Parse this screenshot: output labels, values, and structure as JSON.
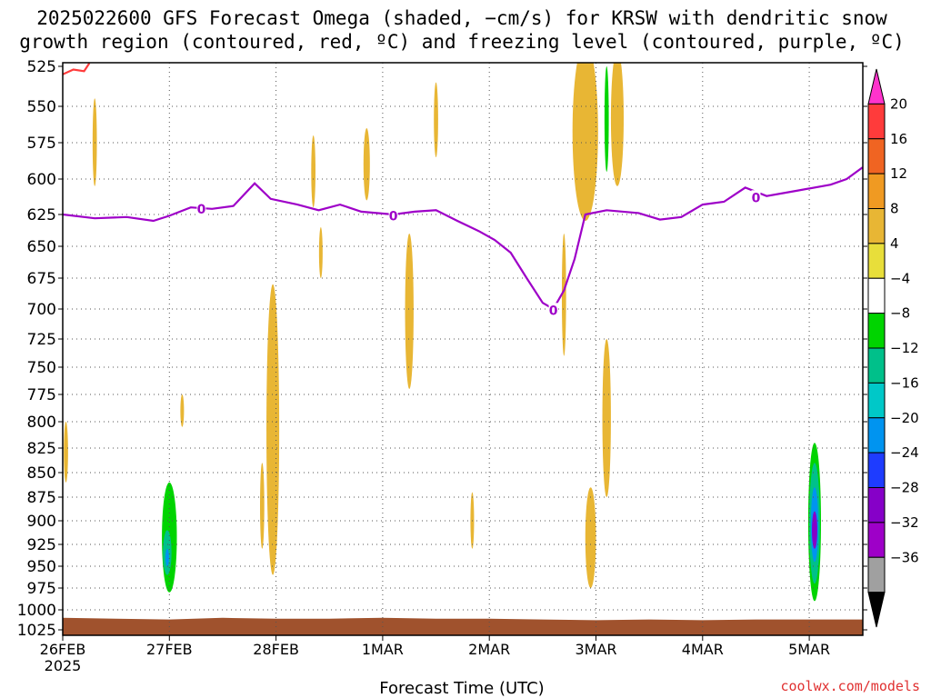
{
  "title_lines": [
    "2025022600 GFS Forecast Omega (shaded, −cm/s) for KRSW with dendritic snow",
    "growth region (contoured, red, ºC) and freezing level (contoured, purple, ºC)"
  ],
  "credit": "coolwx.com/models",
  "chart_data": {
    "type": "heatmap",
    "title": "2025022600 GFS Forecast Omega (shaded, −cm/s) for KRSW with dendritic snow growth region (contoured, red, ºC) and freezing level (contoured, purple, ºC)",
    "xlabel": "Forecast Time (UTC)",
    "ylabel": "",
    "xlim": [
      0,
      7.5
    ],
    "ylim": [
      1025,
      525
    ],
    "y_ticks": [
      525,
      550,
      575,
      600,
      625,
      650,
      675,
      700,
      725,
      750,
      775,
      800,
      825,
      850,
      875,
      900,
      925,
      950,
      975,
      1000,
      1025
    ],
    "x_ticks": [
      {
        "x": 0,
        "label": "26FEB",
        "sublabel": "2025"
      },
      {
        "x": 1,
        "label": "27FEB"
      },
      {
        "x": 2,
        "label": "28FEB"
      },
      {
        "x": 3,
        "label": "1MAR"
      },
      {
        "x": 4,
        "label": "2MAR"
      },
      {
        "x": 5,
        "label": "3MAR"
      },
      {
        "x": 6,
        "label": "4MAR"
      },
      {
        "x": 7,
        "label": "5MAR"
      }
    ],
    "grid": true,
    "colorbar": {
      "labels": [
        "20",
        "16",
        "12",
        "8",
        "4",
        "−4",
        "−8",
        "−12",
        "−16",
        "−20",
        "−24",
        "−28",
        "−32",
        "−36"
      ],
      "colors": [
        "#ff33cc",
        "#ff3b3b",
        "#f06422",
        "#f09a22",
        "#e8b634",
        "#e8de3a",
        "#ffffff",
        "#00d400",
        "#00c08a",
        "#00c8c8",
        "#0094f0",
        "#1e3cff",
        "#8600c8",
        "#9e00c8",
        "#a0a0a0",
        "#000000"
      ]
    },
    "freezing_level": {
      "color": "#9e00c8",
      "label": "0",
      "points": [
        [
          0,
          625
        ],
        [
          0.3,
          628
        ],
        [
          0.6,
          627
        ],
        [
          0.85,
          630
        ],
        [
          1.0,
          626
        ],
        [
          1.2,
          620
        ],
        [
          1.4,
          621
        ],
        [
          1.6,
          619
        ],
        [
          1.8,
          603
        ],
        [
          1.95,
          614
        ],
        [
          2.2,
          618
        ],
        [
          2.4,
          622
        ],
        [
          2.6,
          618
        ],
        [
          2.8,
          623
        ],
        [
          3.1,
          625
        ],
        [
          3.3,
          623
        ],
        [
          3.5,
          622
        ],
        [
          3.7,
          630
        ],
        [
          3.9,
          638
        ],
        [
          4.05,
          645
        ],
        [
          4.2,
          655
        ],
        [
          4.35,
          675
        ],
        [
          4.5,
          695
        ],
        [
          4.6,
          700
        ],
        [
          4.7,
          685
        ],
        [
          4.8,
          660
        ],
        [
          4.9,
          625
        ],
        [
          5.1,
          622
        ],
        [
          5.4,
          624
        ],
        [
          5.6,
          629
        ],
        [
          5.8,
          627
        ],
        [
          6.0,
          618
        ],
        [
          6.2,
          616
        ],
        [
          6.4,
          606
        ],
        [
          6.6,
          612
        ],
        [
          6.9,
          608
        ],
        [
          7.2,
          604
        ],
        [
          7.35,
          600
        ],
        [
          7.5,
          592
        ]
      ],
      "label_at": [
        [
          1.3,
          621
        ],
        [
          3.1,
          626
        ],
        [
          4.6,
          701
        ],
        [
          6.5,
          613
        ]
      ]
    },
    "dgz_contour": {
      "color": "#ff3b3b",
      "points": [
        [
          0.0,
          530
        ],
        [
          0.1,
          527
        ],
        [
          0.2,
          528
        ],
        [
          0.25,
          523
        ]
      ]
    },
    "terrain": {
      "color": "#a0522d",
      "points": [
        [
          0,
          1010
        ],
        [
          0.5,
          1011
        ],
        [
          1.0,
          1012
        ],
        [
          1.5,
          1010
        ],
        [
          2.0,
          1011
        ],
        [
          2.5,
          1011
        ],
        [
          3.0,
          1010
        ],
        [
          3.5,
          1011
        ],
        [
          4.0,
          1011
        ],
        [
          4.5,
          1012
        ],
        [
          5.0,
          1013
        ],
        [
          5.5,
          1012
        ],
        [
          6.0,
          1013
        ],
        [
          6.5,
          1012
        ],
        [
          7.0,
          1012
        ],
        [
          7.5,
          1012
        ]
      ]
    },
    "omega_regions": [
      {
        "value": -6,
        "cx": 1.0,
        "cy": 915,
        "rx": 0.12,
        "ry": 90
      },
      {
        "value": -10,
        "cx": 1.0,
        "cy": 920,
        "rx": 0.07,
        "ry": 60
      },
      {
        "value": -14,
        "cx": 0.98,
        "cy": 935,
        "rx": 0.04,
        "ry": 25
      },
      {
        "value": -22,
        "cx": 0.98,
        "cy": 940,
        "rx": 0.01,
        "ry": 10
      },
      {
        "value": -6,
        "cx": 7.05,
        "cy": 905,
        "rx": 0.08,
        "ry": 105
      },
      {
        "value": -10,
        "cx": 7.05,
        "cy": 905,
        "rx": 0.06,
        "ry": 85
      },
      {
        "value": -14,
        "cx": 7.05,
        "cy": 905,
        "rx": 0.05,
        "ry": 65
      },
      {
        "value": -22,
        "cx": 7.05,
        "cy": 905,
        "rx": 0.035,
        "ry": 40
      },
      {
        "value": -30,
        "cx": 7.05,
        "cy": 910,
        "rx": 0.025,
        "ry": 20
      },
      {
        "value": -6,
        "cx": 6.9,
        "cy": 920,
        "rx": 0.08,
        "ry": 55
      },
      {
        "value": -6,
        "cx": 6.1,
        "cy": 920,
        "rx": 0.06,
        "ry": 50
      },
      {
        "value": -6,
        "cx": 2.97,
        "cy": 945,
        "rx": 0.05,
        "ry": 50
      },
      {
        "value": -6,
        "cx": 4.35,
        "cy": 665,
        "rx": 0.06,
        "ry": 115
      },
      {
        "value": -6,
        "cx": 4.18,
        "cy": 620,
        "rx": 0.06,
        "ry": 75
      },
      {
        "value": -6,
        "cx": 4.14,
        "cy": 765,
        "rx": 0.03,
        "ry": 95
      },
      {
        "value": -6,
        "cx": 3.65,
        "cy": 610,
        "rx": 0.06,
        "ry": 80
      },
      {
        "value": -6,
        "cx": 3.78,
        "cy": 590,
        "rx": 0.04,
        "ry": 60
      },
      {
        "value": -6,
        "cx": 3.9,
        "cy": 610,
        "rx": 0.03,
        "ry": 40
      },
      {
        "value": -6,
        "cx": 3.55,
        "cy": 660,
        "rx": 0.02,
        "ry": 45
      },
      {
        "value": -6,
        "cx": 1.85,
        "cy": 560,
        "rx": 0.03,
        "ry": 35
      },
      {
        "value": -6,
        "cx": 5.1,
        "cy": 590,
        "rx": 0.03,
        "ry": 55
      },
      {
        "value": -10,
        "cx": 5.1,
        "cy": 560,
        "rx": 0.02,
        "ry": 35
      },
      {
        "value": -6,
        "cx": 5.95,
        "cy": 655,
        "rx": 0.03,
        "ry": 28
      },
      {
        "value": -6,
        "cx": 6.35,
        "cy": 650,
        "rx": 0.03,
        "ry": 25
      },
      {
        "value": -6,
        "cx": 6.3,
        "cy": 538,
        "rx": 0.03,
        "ry": 18
      },
      {
        "value": -6,
        "cx": 0.2,
        "cy": 630,
        "rx": 0.008,
        "ry": 15
      },
      {
        "value": 6,
        "cx": 1.97,
        "cy": 820,
        "rx": 0.06,
        "ry": 140
      },
      {
        "value": 6,
        "cx": 1.87,
        "cy": 885,
        "rx": 0.02,
        "ry": 45
      },
      {
        "value": 6,
        "cx": 4.9,
        "cy": 570,
        "rx": 0.12,
        "ry": 60
      },
      {
        "value": 6,
        "cx": 5.2,
        "cy": 560,
        "rx": 0.06,
        "ry": 45
      },
      {
        "value": 6,
        "cx": 4.95,
        "cy": 920,
        "rx": 0.05,
        "ry": 55
      },
      {
        "value": 6,
        "cx": 5.1,
        "cy": 800,
        "rx": 0.04,
        "ry": 75
      },
      {
        "value": 6,
        "cx": 3.25,
        "cy": 705,
        "rx": 0.04,
        "ry": 65
      },
      {
        "value": 6,
        "cx": 4.7,
        "cy": 690,
        "rx": 0.02,
        "ry": 50
      },
      {
        "value": 6,
        "cx": 0.3,
        "cy": 575,
        "rx": 0.02,
        "ry": 30
      },
      {
        "value": 6,
        "cx": 2.85,
        "cy": 590,
        "rx": 0.03,
        "ry": 25
      },
      {
        "value": 6,
        "cx": 2.35,
        "cy": 595,
        "rx": 0.02,
        "ry": 25
      },
      {
        "value": 6,
        "cx": 3.5,
        "cy": 560,
        "rx": 0.02,
        "ry": 25
      },
      {
        "value": 6,
        "cx": 2.42,
        "cy": 655,
        "rx": 0.015,
        "ry": 20
      },
      {
        "value": 6,
        "cx": 3.84,
        "cy": 900,
        "rx": 0.008,
        "ry": 30
      },
      {
        "value": 6,
        "cx": 0.03,
        "cy": 830,
        "rx": 0.02,
        "ry": 30
      },
      {
        "value": 6,
        "cx": 1.12,
        "cy": 790,
        "rx": 0.008,
        "ry": 15
      }
    ]
  }
}
